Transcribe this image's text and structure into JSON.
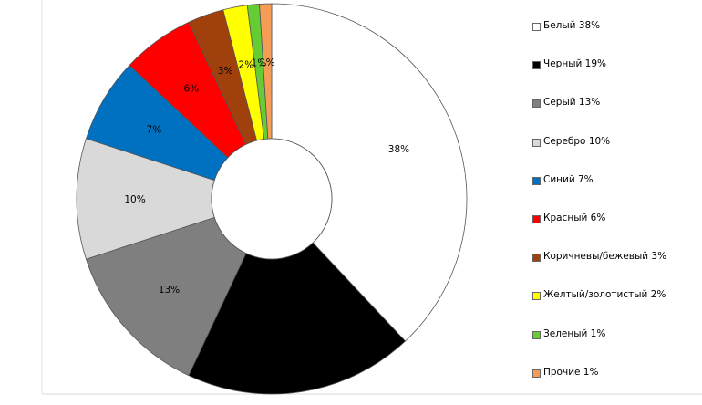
{
  "chart_data": {
    "type": "pie",
    "donut": true,
    "categories": [
      "Белый",
      "Черный",
      "Серый",
      "Серебро",
      "Синий",
      "Красный",
      "Коричневы/бежевый",
      "Желтый/золотистый",
      "Зеленый",
      "Прочие"
    ],
    "values": [
      38,
      19,
      13,
      10,
      7,
      6,
      3,
      2,
      1,
      1
    ],
    "data_labels": [
      "38%",
      "19%",
      "13%",
      "10%",
      "7%",
      "6%",
      "3%",
      "2%",
      "1%",
      "1%"
    ],
    "legend_labels": [
      "Белый 38%",
      "Черный 19%",
      "Серый 13%",
      "Серебро 10%",
      "Синий 7%",
      "Красный 6%",
      "Коричневы/бежевый 3%",
      "Желтый/золотистый 2%",
      "Зеленый 1%",
      "Прочие 1%"
    ],
    "colors": [
      "#ffffff",
      "#000000",
      "#7f7f7f",
      "#d9d9d9",
      "#0070c0",
      "#ff0000",
      "#a0410d",
      "#ffff00",
      "#66cc33",
      "#f59d56"
    ],
    "label_colors": [
      "#000000",
      "#000000",
      "#000000",
      "#000000",
      "#000000",
      "#000000",
      "#000000",
      "#000000",
      "#000000",
      "#000000"
    ],
    "legend_position": "right",
    "start_angle_deg": 0,
    "direction": "clockwise"
  }
}
